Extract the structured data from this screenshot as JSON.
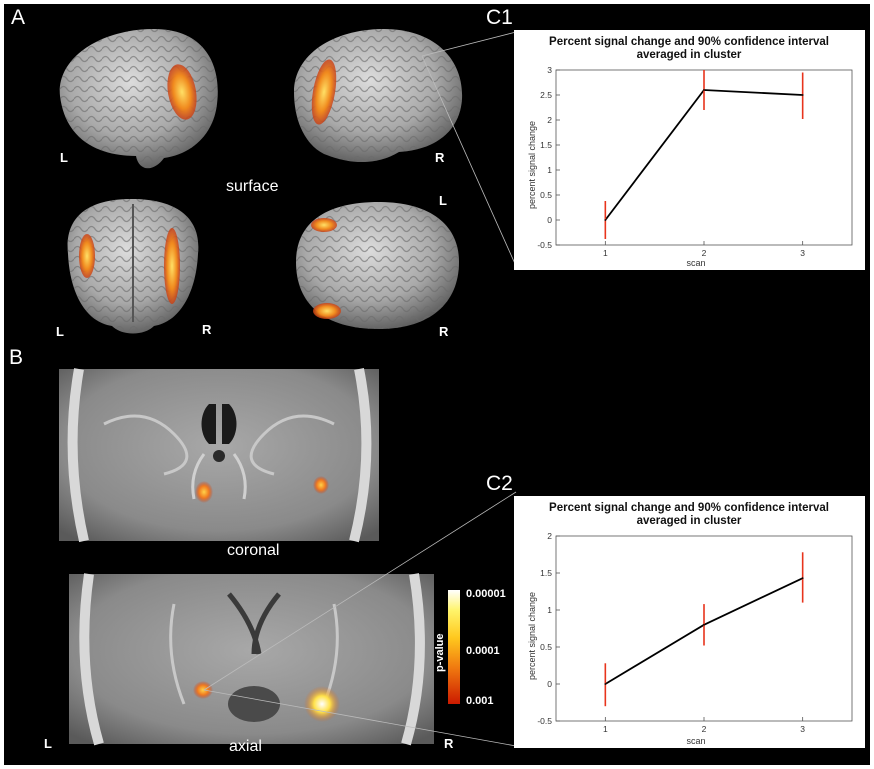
{
  "panels": {
    "a": "A",
    "b": "B",
    "c1": "C1",
    "c2": "C2"
  },
  "surface": {
    "caption": "surface",
    "side_labels": {
      "v1_left": "L",
      "v2_right": "R",
      "v2_left": "L",
      "v3_left": "L",
      "v3_right": "R",
      "v4_right": "R"
    }
  },
  "slices": {
    "coronal_caption": "coronal",
    "axial_caption": "axial",
    "left_label": "L",
    "right_label": "R"
  },
  "colorbar": {
    "title": "p-value",
    "ticks": [
      "0.00001",
      "0.0001",
      "0.001"
    ],
    "colors": {
      "high": "#ffffff",
      "mid": "#ffe600",
      "low": "#cc0000"
    }
  },
  "colors": {
    "line": "#000000",
    "error_bar": "#e8341c",
    "axis": "#555555"
  },
  "chart_data": [
    {
      "type": "line",
      "panel": "C1",
      "title": "Percent signal change and 90% confidence interval",
      "subtitle": "averaged in cluster",
      "xlabel": "scan",
      "ylabel": "percent signal change",
      "x": [
        1,
        2,
        3
      ],
      "y": [
        0.0,
        2.6,
        2.5
      ],
      "ci_low": [
        -0.38,
        2.2,
        2.02
      ],
      "ci_high": [
        0.38,
        3.0,
        2.95
      ],
      "xlim": [
        0.5,
        3.5
      ],
      "ylim": [
        -0.5,
        3
      ],
      "xticks": [
        "1",
        "2",
        "3"
      ],
      "yticks": [
        "-0.5",
        "0",
        "0.5",
        "1",
        "1.5",
        "2",
        "2.5",
        "3"
      ],
      "grid": false
    },
    {
      "type": "line",
      "panel": "C2",
      "title": "Percent signal change and 90% confidence interval",
      "subtitle": "averaged in cluster",
      "xlabel": "scan",
      "ylabel": "percent signal change",
      "x": [
        1,
        2,
        3
      ],
      "y": [
        0.0,
        0.8,
        1.43
      ],
      "ci_low": [
        -0.3,
        0.52,
        1.1
      ],
      "ci_high": [
        0.28,
        1.08,
        1.78
      ],
      "xlim": [
        0.5,
        3.5
      ],
      "ylim": [
        -0.5,
        2
      ],
      "xticks": [
        "1",
        "2",
        "3"
      ],
      "yticks": [
        "-0.5",
        "0",
        "0.5",
        "1",
        "1.5",
        "2"
      ],
      "grid": false
    }
  ]
}
